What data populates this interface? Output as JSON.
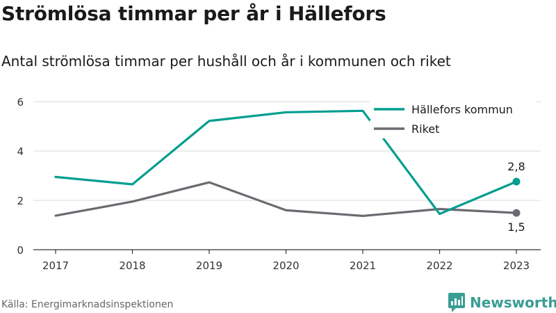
{
  "title": "Strömlösa timmar per år i Hällefors",
  "subtitle": "Antal strömlösa timmar per hushåll och år i kommunen och riket",
  "source": "Källa: Energimarknadsinspektionen",
  "brand": "Newsworthy",
  "colors": {
    "hallefors": "#009e8f",
    "riket": "#6c6a70",
    "grid": "#d9d9d9",
    "axis": "#333333",
    "brand": "#3a9d94"
  },
  "chart_data": {
    "type": "line",
    "categories": [
      "2017",
      "2018",
      "2019",
      "2020",
      "2021",
      "2022",
      "2023"
    ],
    "ylim": [
      0,
      6.4
    ],
    "yticks": [
      0,
      2,
      4,
      6
    ],
    "grid": true,
    "legend_position": "top-right",
    "series": [
      {
        "name": "Hällefors kommun",
        "values": [
          2.95,
          2.65,
          5.22,
          5.57,
          5.63,
          1.45,
          2.76
        ],
        "end_label": "2,8"
      },
      {
        "name": "Riket",
        "values": [
          1.38,
          1.95,
          2.73,
          1.6,
          1.37,
          1.65,
          1.49
        ],
        "end_label": "1,5"
      }
    ]
  }
}
